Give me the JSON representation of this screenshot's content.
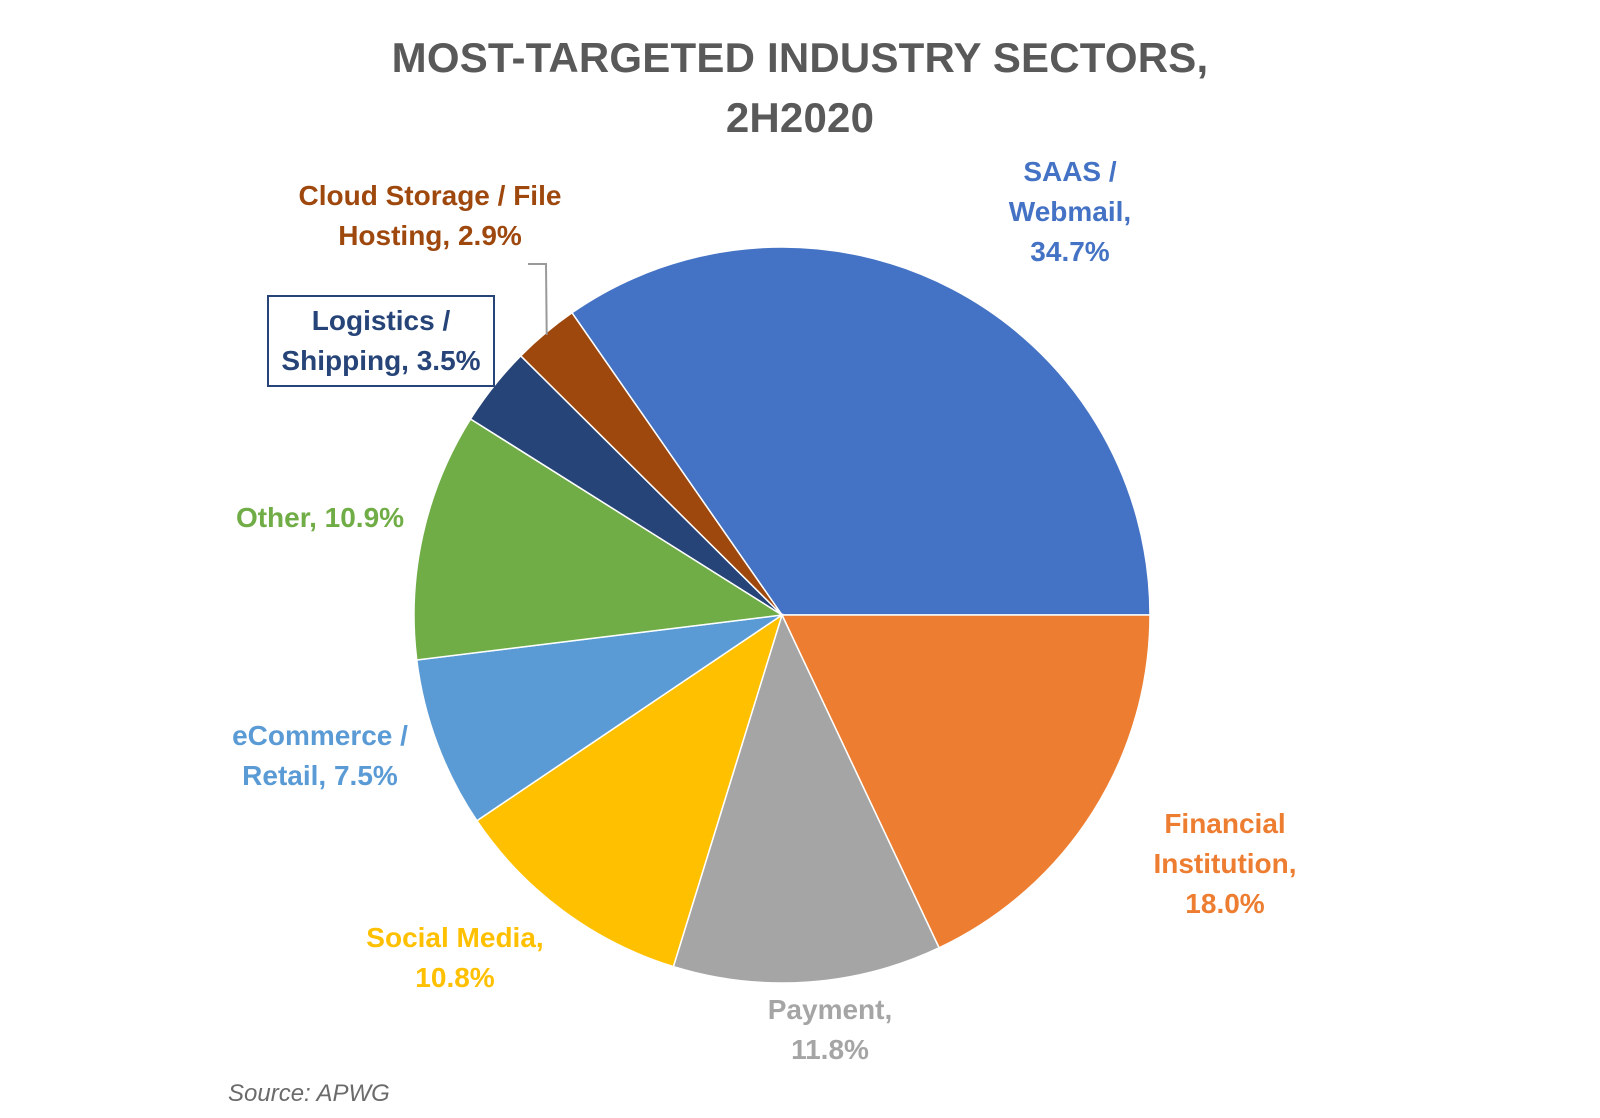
{
  "chart_data": {
    "type": "pie",
    "title_lines": [
      "MOST-TARGETED INDUSTRY SECTORS,",
      "2H2020"
    ],
    "unit": "%",
    "slices": [
      {
        "label": "SAAS / Webmail",
        "value": 34.7,
        "label_text": "SAAS /\nWebmail,\n34.7%",
        "color": "#4472C4"
      },
      {
        "label": "Financial Institution",
        "value": 18.0,
        "label_text": "Financial\nInstitution,\n18.0%",
        "color": "#ED7D31"
      },
      {
        "label": "Payment",
        "value": 11.8,
        "label_text": "Payment,\n11.8%",
        "color": "#A5A5A5"
      },
      {
        "label": "Social Media",
        "value": 10.8,
        "label_text": "Social Media,\n10.8%",
        "color": "#FFC000"
      },
      {
        "label": "eCommerce / Retail",
        "value": 7.5,
        "label_text": "eCommerce /\nRetail, 7.5%",
        "color": "#5B9BD5"
      },
      {
        "label": "Other",
        "value": 10.9,
        "label_text": "Other, 10.9%",
        "color": "#70AD47"
      },
      {
        "label": "Logistics / Shipping",
        "value": 3.5,
        "label_text": "Logistics /\nShipping, 3.5%",
        "color": "#264478"
      },
      {
        "label": "Cloud Storage / File Hosting",
        "value": 2.9,
        "label_text": "Cloud Storage / File\nHosting, 2.9%",
        "color": "#9E480E"
      }
    ],
    "source": "Source: APWG"
  }
}
